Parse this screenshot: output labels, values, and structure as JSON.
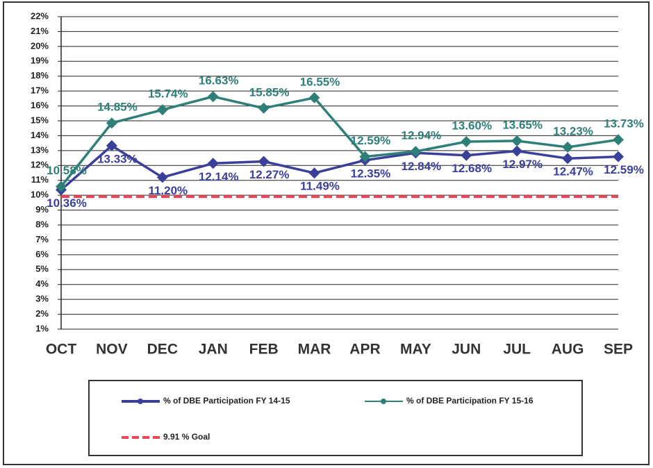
{
  "chart_data": {
    "type": "line",
    "categories": [
      "OCT",
      "NOV",
      "DEC",
      "JAN",
      "FEB",
      "MAR",
      "APR",
      "MAY",
      "JUN",
      "JUL",
      "AUG",
      "SEP"
    ],
    "series": [
      {
        "name": "% of DBE Participation FY 14-15",
        "color": "#3a3f9a",
        "values": [
          10.36,
          13.33,
          11.2,
          12.14,
          12.27,
          11.49,
          12.35,
          12.84,
          12.68,
          12.97,
          12.47,
          12.59
        ],
        "value_labels": [
          "10.36%",
          "13.33%",
          "11.20%",
          "12.14%",
          "12.27%",
          "11.49%",
          "12.35%",
          "12.84%",
          "12.68%",
          "12.97%",
          "12.47%",
          "12.59%"
        ]
      },
      {
        "name": "% of DBE Participation FY 15-16",
        "color": "#2e7f78",
        "values": [
          10.58,
          14.85,
          15.74,
          16.63,
          15.85,
          16.55,
          12.59,
          12.94,
          13.6,
          13.65,
          13.23,
          13.73
        ],
        "value_labels": [
          "10.58%",
          "14.85%",
          "15.74%",
          "16.63%",
          "15.85%",
          "16.55%",
          "12.59%",
          "12.94%",
          "13.60%",
          "13.65%",
          "13.23%",
          "13.73%"
        ]
      }
    ],
    "goal": {
      "name": "9.91 % Goal",
      "value": 9.91,
      "color": "#ee4455"
    },
    "ylim": [
      1,
      22
    ],
    "yticks": [
      {
        "value": 1,
        "label": "1%"
      },
      {
        "value": 2,
        "label": "2%"
      },
      {
        "value": 3,
        "label": "3%"
      },
      {
        "value": 4,
        "label": "4%"
      },
      {
        "value": 5,
        "label": "5%"
      },
      {
        "value": 6,
        "label": "6%"
      },
      {
        "value": 7,
        "label": "7%"
      },
      {
        "value": 8,
        "label": "8%"
      },
      {
        "value": 9,
        "label": "9%"
      },
      {
        "value": 10,
        "label": "10%"
      },
      {
        "value": 11,
        "label": "11%"
      },
      {
        "value": 12,
        "label": "12%"
      },
      {
        "value": 13,
        "label": "13%"
      },
      {
        "value": 14,
        "label": "14%"
      },
      {
        "value": 15,
        "label": "15%"
      },
      {
        "value": 16,
        "label": "16%"
      },
      {
        "value": 17,
        "label": "17%"
      },
      {
        "value": 18,
        "label": "18%"
      },
      {
        "value": 19,
        "label": "19%"
      },
      {
        "value": 20,
        "label": "20%"
      },
      {
        "value": 21,
        "label": "21%"
      },
      {
        "value": 22,
        "label": "22%"
      }
    ],
    "grid": true
  }
}
